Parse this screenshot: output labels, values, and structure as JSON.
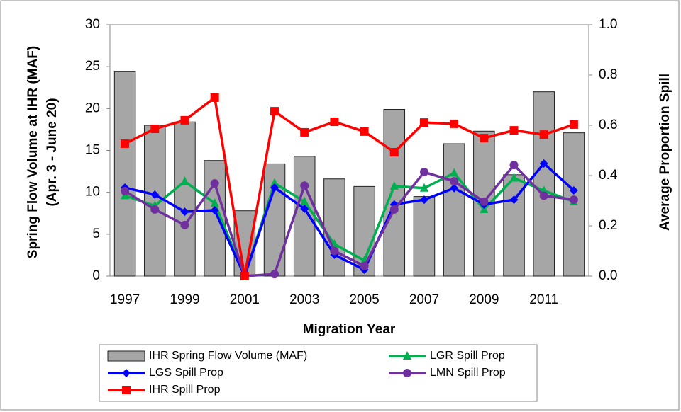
{
  "chart_data": {
    "type": "combo",
    "xlabel": "Migration Year",
    "ylabel": [
      "Spring Flow Volume at IHR (MAF)",
      "(Apr. 3 - June 20)"
    ],
    "y2label": "Average Proportion Spill",
    "categories": [
      "1997",
      null,
      "1999",
      null,
      "2001",
      null,
      "2003",
      null,
      "2005",
      null,
      "2007",
      null,
      "2009",
      null,
      "2011",
      null
    ],
    "ylim": [
      0,
      30
    ],
    "yticks": [
      0,
      5,
      10,
      15,
      20,
      25,
      30
    ],
    "y2lim": [
      0,
      1
    ],
    "y2ticks": [
      {
        "value": 0,
        "label": "0.0"
      },
      {
        "value": 0.2,
        "label": "0.2"
      },
      {
        "value": 0.4,
        "label": "0.4"
      },
      {
        "value": 0.6,
        "label": "0.6"
      },
      {
        "value": 0.8,
        "label": "0.8"
      },
      {
        "value": 1,
        "label": "1.0"
      }
    ],
    "series": [
      {
        "name": "IHR Spring Flow Volume (MAF)",
        "type": "bar",
        "color": "#a6a6a6",
        "values": [
          24.4,
          18.0,
          18.4,
          13.8,
          7.8,
          13.4,
          14.3,
          11.6,
          10.7,
          19.9,
          9.5,
          15.8,
          17.3,
          12.1,
          22.0,
          17.1
        ]
      },
      {
        "name": "LGR Spill Prop",
        "type": "line",
        "axis": "y2",
        "marker": "triangle",
        "color": "#00b050",
        "values": [
          0.32,
          0.28,
          0.377,
          0.29,
          0,
          0.37,
          0.296,
          0.127,
          0.062,
          0.358,
          0.35,
          0.41,
          0.265,
          0.39,
          0.34,
          0.296
        ]
      },
      {
        "name": "LGS Spill Prop",
        "type": "line",
        "axis": "y2",
        "marker": "diamond",
        "color": "#0000ff",
        "values": [
          0.352,
          0.324,
          0.256,
          0.262,
          0,
          0.352,
          0.268,
          0.085,
          0.025,
          0.285,
          0.304,
          0.35,
          0.285,
          0.304,
          0.448,
          0.341
        ]
      },
      {
        "name": "LMN Spill Prop",
        "type": "line",
        "axis": "y2",
        "marker": "circle",
        "color": "#7030a0",
        "values": [
          0.338,
          0.265,
          0.203,
          0.369,
          0,
          0.008,
          0.36,
          0.1,
          0.04,
          0.265,
          0.414,
          0.377,
          0.296,
          0.442,
          0.32,
          0.304
        ]
      },
      {
        "name": "IHR Spill Prop",
        "type": "line",
        "axis": "y2",
        "marker": "square",
        "color": "#ff0000",
        "values": [
          0.527,
          0.586,
          0.62,
          0.71,
          0,
          0.656,
          0.572,
          0.614,
          0.575,
          0.493,
          0.611,
          0.606,
          0.549,
          0.58,
          0.563,
          0.603
        ]
      }
    ]
  }
}
